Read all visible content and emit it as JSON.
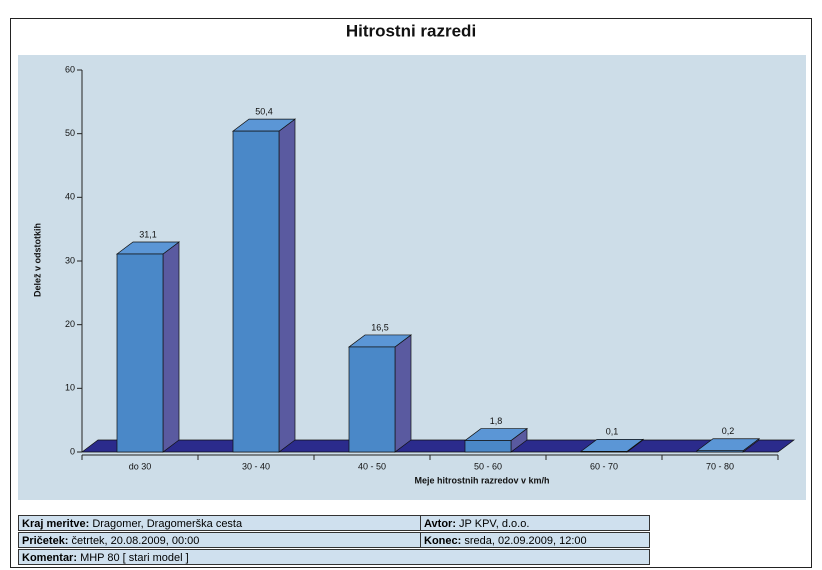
{
  "chart_data": {
    "type": "bar",
    "title": "Hitrostni razredi",
    "categories": [
      "do 30",
      "30 - 40",
      "40 - 50",
      "50 - 60",
      "60 - 70",
      "70 - 80"
    ],
    "values": [
      31.1,
      50.4,
      16.5,
      1.8,
      0.1,
      0.2
    ],
    "value_labels": [
      "31,1",
      "50,4",
      "16,5",
      "1,8",
      "0,1",
      "0,2"
    ],
    "color": "#4a88c8",
    "ylim": [
      0,
      60
    ],
    "yticks": [
      0,
      10,
      20,
      30,
      40,
      50,
      60
    ],
    "x_label": "Meje hitrostnih razredov v km/h",
    "y_label": "Delež v odstotkih"
  },
  "table": {
    "rows": [
      [
        {
          "label": "Kraj meritve:",
          "value": "Dragomer, Dragomerška cesta"
        },
        {
          "label": "Avtor:",
          "value": "JP KPV, d.o.o."
        }
      ],
      [
        {
          "label": "Pričetek:",
          "value": "četrtek, 20.08.2009, 00:00"
        },
        {
          "label": "Konec:",
          "value": "sreda, 02.09.2009, 12:00"
        }
      ],
      [
        {
          "label": "Komentar:",
          "value": "MHP 80 [ stari model ]"
        }
      ]
    ]
  }
}
